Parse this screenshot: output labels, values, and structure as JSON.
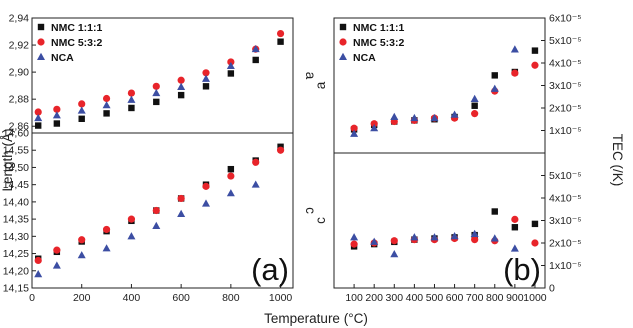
{
  "chart_data": [
    {
      "type": "scatter",
      "panel": "a-top",
      "panel_label": "",
      "ylabel": "a",
      "ylim": [
        2.855,
        2.94
      ],
      "yticks": [
        "2,86",
        "2,88",
        "2,90",
        "2,92",
        "2,94"
      ],
      "ytick_values": [
        2.86,
        2.88,
        2.9,
        2.92,
        2.94
      ],
      "xlim": [
        0,
        1050
      ],
      "legend_position": "top-left",
      "series": [
        {
          "name": "NMC 1:1:1",
          "color": "#111111",
          "marker": "square",
          "x": [
            25,
            100,
            200,
            300,
            400,
            500,
            600,
            700,
            800,
            900,
            1000
          ],
          "y": [
            2.8605,
            2.862,
            2.8655,
            2.8695,
            2.8735,
            2.878,
            2.883,
            2.8895,
            2.899,
            2.909,
            2.9225
          ]
        },
        {
          "name": "NMC 5:3:2",
          "color": "#e8242a",
          "marker": "circle",
          "x": [
            25,
            100,
            200,
            300,
            400,
            500,
            600,
            700,
            800,
            900,
            1000
          ],
          "y": [
            2.8705,
            2.8725,
            2.8765,
            2.8805,
            2.8845,
            2.8895,
            2.894,
            2.8995,
            2.9075,
            2.917,
            2.9285
          ]
        },
        {
          "name": "NCA",
          "color": "#3c4ea3",
          "marker": "triangle",
          "x": [
            25,
            100,
            200,
            300,
            400,
            500,
            600,
            700,
            800,
            900
          ],
          "y": [
            2.866,
            2.868,
            2.8715,
            2.8755,
            2.8795,
            2.8845,
            2.889,
            2.895,
            2.9045,
            2.917
          ]
        }
      ]
    },
    {
      "type": "scatter",
      "panel": "a-bottom",
      "panel_label": "(a)",
      "ylabel": "c",
      "xlabel": "Temperature (°C)",
      "ylim": [
        14.15,
        14.6
      ],
      "yticks": [
        "14,15",
        "14,20",
        "14,25",
        "14,30",
        "14,35",
        "14,40",
        "14,45",
        "14,50",
        "14,55",
        "14,60"
      ],
      "ytick_values": [
        14.15,
        14.2,
        14.25,
        14.3,
        14.35,
        14.4,
        14.45,
        14.5,
        14.55,
        14.6
      ],
      "xlim": [
        0,
        1050
      ],
      "xticks": [
        "0",
        "200",
        "400",
        "600",
        "800",
        "1000"
      ],
      "xtick_values": [
        0,
        200,
        400,
        600,
        800,
        1000
      ],
      "series": [
        {
          "name": "NMC 1:1:1",
          "color": "#111111",
          "marker": "square",
          "x": [
            25,
            100,
            200,
            300,
            400,
            500,
            600,
            700,
            800,
            900,
            1000
          ],
          "y": [
            14.235,
            14.255,
            14.285,
            14.315,
            14.345,
            14.375,
            14.41,
            14.45,
            14.495,
            14.52,
            14.56
          ]
        },
        {
          "name": "NMC 5:3:2",
          "color": "#e8242a",
          "marker": "circle",
          "x": [
            25,
            100,
            200,
            300,
            400,
            500,
            600,
            700,
            800,
            900,
            1000
          ],
          "y": [
            14.23,
            14.26,
            14.29,
            14.32,
            14.35,
            14.375,
            14.41,
            14.445,
            14.475,
            14.515,
            14.55
          ]
        },
        {
          "name": "NCA",
          "color": "#3c4ea3",
          "marker": "triangle",
          "x": [
            25,
            100,
            200,
            300,
            400,
            500,
            600,
            700,
            800,
            900
          ],
          "y": [
            14.19,
            14.215,
            14.245,
            14.265,
            14.3,
            14.33,
            14.365,
            14.395,
            14.425,
            14.45
          ]
        }
      ]
    },
    {
      "type": "scatter",
      "panel": "b-top",
      "panel_label": "",
      "ylabel": "a",
      "ylim": [
        0,
        6e-05
      ],
      "yticks": [
        "1x10⁻⁵",
        "2x10⁻⁵",
        "3x10⁻⁵",
        "4x10⁻⁵",
        "5x10⁻⁵",
        "6x10⁻⁵"
      ],
      "ytick_values": [
        1e-05,
        2e-05,
        3e-05,
        4e-05,
        5e-05,
        6e-05
      ],
      "xlim": [
        0,
        1050
      ],
      "legend_position": "top-left",
      "series": [
        {
          "name": "NMC 1:1:1",
          "color": "#111111",
          "marker": "square",
          "x": [
            100,
            200,
            300,
            400,
            500,
            600,
            700,
            800,
            900,
            1000
          ],
          "y": [
            1.05e-05,
            1.25e-05,
            1.4e-05,
            1.45e-05,
            1.5e-05,
            1.6e-05,
            2.1e-05,
            3.45e-05,
            3.6e-05,
            4.55e-05
          ]
        },
        {
          "name": "NMC 5:3:2",
          "color": "#e8242a",
          "marker": "circle",
          "x": [
            100,
            200,
            300,
            400,
            500,
            600,
            700,
            800,
            900,
            1000
          ],
          "y": [
            1.1e-05,
            1.3e-05,
            1.4e-05,
            1.45e-05,
            1.55e-05,
            1.55e-05,
            1.75e-05,
            2.75e-05,
            3.55e-05,
            3.9e-05
          ]
        },
        {
          "name": "NCA",
          "color": "#3c4ea3",
          "marker": "triangle",
          "x": [
            100,
            200,
            300,
            400,
            500,
            600,
            700,
            800,
            900
          ],
          "y": [
            8.5e-06,
            1.1e-05,
            1.6e-05,
            1.55e-05,
            1.55e-05,
            1.7e-05,
            2.4e-05,
            2.85e-05,
            4.6e-05
          ]
        }
      ]
    },
    {
      "type": "scatter",
      "panel": "b-bottom",
      "panel_label": "(b)",
      "ylabel": "c",
      "xlabel": "Temperature (°C)",
      "ylim": [
        0,
        6e-05
      ],
      "yticks": [
        "0",
        "1x10⁻⁵",
        "2x10⁻⁵",
        "3x10⁻⁵",
        "4x10⁻⁵",
        "5x10⁻⁵"
      ],
      "ytick_values": [
        0,
        1e-05,
        2e-05,
        3e-05,
        4e-05,
        5e-05
      ],
      "xlim": [
        0,
        1050
      ],
      "xticks": [
        "100",
        "200",
        "300",
        "400",
        "500",
        "600",
        "700",
        "800",
        "900",
        "1000"
      ],
      "xtick_values": [
        100,
        200,
        300,
        400,
        500,
        600,
        700,
        800,
        900,
        1000
      ],
      "series": [
        {
          "name": "NMC 1:1:1",
          "color": "#111111",
          "marker": "square",
          "x": [
            100,
            200,
            300,
            400,
            500,
            600,
            700,
            800,
            900,
            1000
          ],
          "y": [
            1.85e-05,
            1.95e-05,
            2.05e-05,
            2.15e-05,
            2.2e-05,
            2.25e-05,
            2.35e-05,
            3.4e-05,
            2.7e-05,
            2.85e-05
          ]
        },
        {
          "name": "NMC 5:3:2",
          "color": "#e8242a",
          "marker": "circle",
          "x": [
            100,
            200,
            300,
            400,
            500,
            600,
            700,
            800,
            900,
            1000
          ],
          "y": [
            1.95e-05,
            2e-05,
            2.1e-05,
            2.15e-05,
            2.15e-05,
            2.2e-05,
            2.15e-05,
            2.1e-05,
            3.05e-05,
            2e-05
          ]
        },
        {
          "name": "NCA",
          "color": "#3c4ea3",
          "marker": "triangle",
          "x": [
            100,
            200,
            300,
            400,
            500,
            600,
            700,
            800,
            900
          ],
          "y": [
            2.25e-05,
            2.05e-05,
            1.5e-05,
            2.25e-05,
            2.25e-05,
            2.3e-05,
            2.4e-05,
            2.2e-05,
            1.75e-05
          ]
        }
      ]
    }
  ],
  "labels": {
    "ylabel_left": "Length (Å)",
    "ylabel_right": "TEC (/K)",
    "xlabel": "Temperature (°C)"
  },
  "legend": [
    {
      "name": "NMC 1:1:1",
      "color": "#111111",
      "marker": "square"
    },
    {
      "name": "NMC 5:3:2",
      "color": "#e8242a",
      "marker": "circle"
    },
    {
      "name": "NCA",
      "color": "#3c4ea3",
      "marker": "triangle"
    }
  ]
}
